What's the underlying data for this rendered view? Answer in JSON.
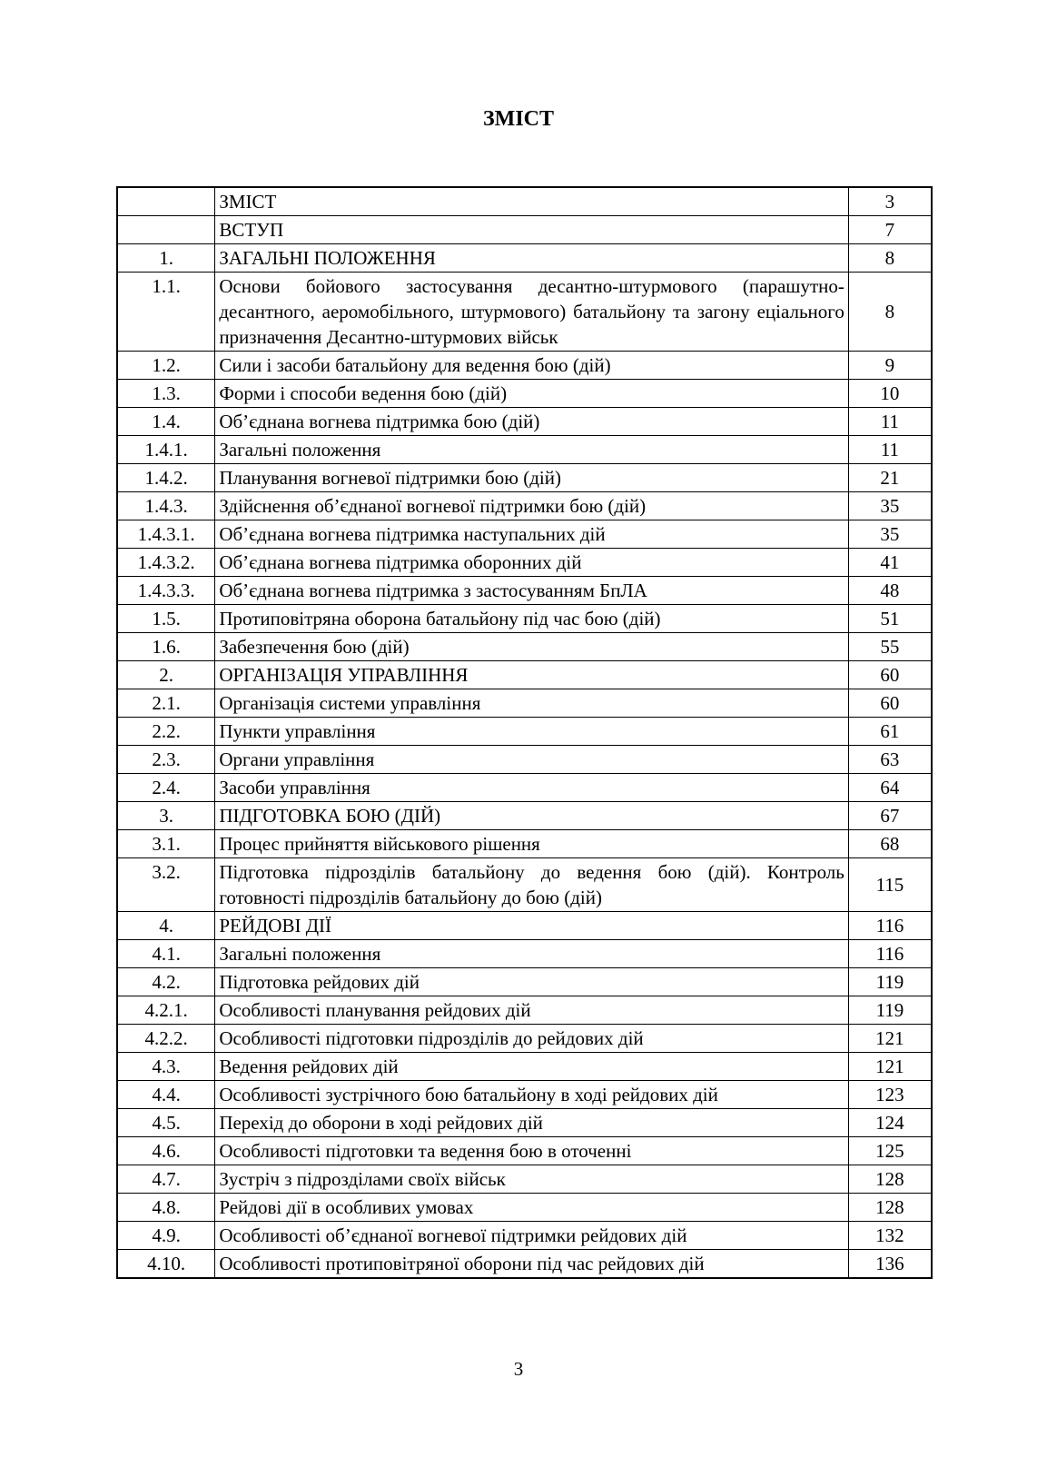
{
  "page": {
    "title": "ЗМІСТ",
    "page_number": "3"
  },
  "toc": {
    "rows": [
      {
        "num": "",
        "title": "ЗМІСТ",
        "page": "3"
      },
      {
        "num": "",
        "title": "ВСТУП",
        "page": "7"
      },
      {
        "num": "1.",
        "title": "ЗАГАЛЬНІ ПОЛОЖЕННЯ",
        "page": "8"
      },
      {
        "num": "1.1.",
        "title": "Основи бойового застосування десантно-штурмового (парашутно-десантного, аеромобільного, штурмового) батальйону та загону еціального призначення Десантно-штурмових військ",
        "page": "8",
        "multiline": true
      },
      {
        "num": "1.2.",
        "title": "Сили і засоби батальйону для ведення бою (дій)",
        "page": "9"
      },
      {
        "num": "1.3.",
        "title": "Форми і способи ведення бою (дій)",
        "page": "10"
      },
      {
        "num": "1.4.",
        "title": "Об’єднана вогнева підтримка бою (дій)",
        "page": "11"
      },
      {
        "num": "1.4.1.",
        "title": "Загальні положення",
        "page": "11"
      },
      {
        "num": "1.4.2.",
        "title": "Планування вогневої підтримки бою (дій)",
        "page": "21"
      },
      {
        "num": "1.4.3.",
        "title": "Здійснення об’єднаної вогневої підтримки бою (дій)",
        "page": "35"
      },
      {
        "num": "1.4.3.1.",
        "title": "Об’єднана вогнева підтримка наступальних дій",
        "page": "35"
      },
      {
        "num": "1.4.3.2.",
        "title": "Об’єднана вогнева підтримка оборонних дій",
        "page": "41"
      },
      {
        "num": "1.4.3.3.",
        "title": "Об’єднана вогнева підтримка з застосуванням БпЛА",
        "page": "48"
      },
      {
        "num": "1.5.",
        "title": "Протиповітряна оборона батальйону під час бою (дій)",
        "page": "51"
      },
      {
        "num": "1.6.",
        "title": "Забезпечення  бою (дій)",
        "page": "55"
      },
      {
        "num": "2.",
        "title": "ОРГАНІЗАЦІЯ УПРАВЛІННЯ",
        "page": "60"
      },
      {
        "num": "2.1.",
        "title": "Організація системи управління",
        "page": "60"
      },
      {
        "num": "2.2.",
        "title": "Пункти управління",
        "page": "61"
      },
      {
        "num": "2.3.",
        "title": "Органи управління",
        "page": "63"
      },
      {
        "num": "2.4.",
        "title": "Засоби управління",
        "page": "64"
      },
      {
        "num": "3.",
        "title": "ПІДГОТОВКА БОЮ (ДІЙ)",
        "page": "67"
      },
      {
        "num": "3.1.",
        "title": "Процес прийняття військового рішення",
        "page": "68"
      },
      {
        "num": "3.2.",
        "title": "Підготовка підрозділів батальйону до ведення бою (дій). Контроль готовності підрозділів батальйону до бою (дій)",
        "page": "115",
        "multiline": true
      },
      {
        "num": "4.",
        "title": "РЕЙДОВІ ДІЇ",
        "page": "116"
      },
      {
        "num": "4.1.",
        "title": "Загальні положення",
        "page": "116"
      },
      {
        "num": "4.2.",
        "title": "Підготовка рейдових дій",
        "page": "119"
      },
      {
        "num": "4.2.1.",
        "title": "Особливості планування рейдових дій",
        "page": "119"
      },
      {
        "num": "4.2.2.",
        "title": "Особливості підготовки підрозділів до рейдових дій",
        "page": "121"
      },
      {
        "num": "4.3.",
        "title": "Ведення рейдових дій",
        "page": "121"
      },
      {
        "num": "4.4.",
        "title": "Особливості зустрічного бою батальйону в ході рейдових дій",
        "page": "123",
        "multiline": true
      },
      {
        "num": "4.5.",
        "title": "Перехід до оборони в ході рейдових дій",
        "page": "124"
      },
      {
        "num": "4.6.",
        "title": "Особливості підготовки та ведення бою в оточенні",
        "page": "125"
      },
      {
        "num": "4.7.",
        "title": "Зустріч з підрозділами своїх військ",
        "page": "128"
      },
      {
        "num": "4.8.",
        "title": "Рейдові дії в особливих умовах",
        "page": "128"
      },
      {
        "num": "4.9.",
        "title": "Особливості об’єднаної вогневої підтримки рейдових дій",
        "page": "132"
      },
      {
        "num": "4.10.",
        "title": "Особливості протиповітряної оборони під час рейдових дій",
        "page": "136"
      }
    ]
  }
}
